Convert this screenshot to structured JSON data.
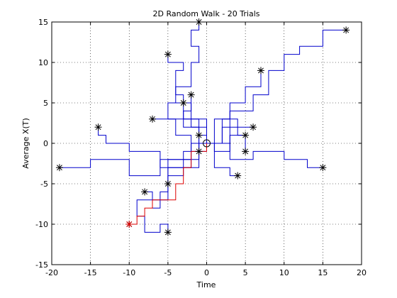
{
  "chart_data": {
    "type": "line",
    "title": "2D Random Walk - 20 Trials",
    "xlabel": "Time",
    "ylabel": "Average X(T)",
    "xlim": [
      -20,
      20
    ],
    "ylim": [
      -15,
      15
    ],
    "xticks": [
      -20,
      -15,
      -10,
      -5,
      0,
      5,
      10,
      15,
      20
    ],
    "yticks": [
      -15,
      -10,
      -5,
      0,
      5,
      10,
      15
    ],
    "grid": "dotted",
    "legend": "none",
    "start_point": [
      0,
      0
    ],
    "endpoints": [
      [
        -19,
        -3
      ],
      [
        -14,
        2
      ],
      [
        -10,
        -10
      ],
      [
        -8,
        -6
      ],
      [
        -7,
        3
      ],
      [
        -5,
        11
      ],
      [
        -5,
        -5
      ],
      [
        -5,
        -11
      ],
      [
        -3,
        5
      ],
      [
        -2,
        6
      ],
      [
        -1,
        15
      ],
      [
        -1,
        1
      ],
      [
        -1,
        -1
      ],
      [
        4,
        -4
      ],
      [
        5,
        1
      ],
      [
        5,
        -1
      ],
      [
        6,
        2
      ],
      [
        7,
        9
      ],
      [
        15,
        -3
      ],
      [
        18,
        14
      ]
    ],
    "blue_walks": [
      [
        [
          0,
          0
        ],
        [
          0,
          -1
        ],
        [
          -3,
          -1
        ],
        [
          -3,
          -3
        ],
        [
          -6,
          -3
        ],
        [
          -6,
          -1
        ],
        [
          -10,
          -1
        ],
        [
          -10,
          0
        ],
        [
          -13,
          0
        ],
        [
          -13,
          1
        ],
        [
          -14,
          1
        ],
        [
          -14,
          2
        ]
      ],
      [
        [
          0,
          0
        ],
        [
          -2,
          0
        ],
        [
          -2,
          -2
        ],
        [
          -6,
          -2
        ],
        [
          -6,
          -4
        ],
        [
          -10,
          -4
        ],
        [
          -10,
          -2
        ],
        [
          -15,
          -2
        ],
        [
          -15,
          -3
        ],
        [
          -19,
          -3
        ]
      ],
      [
        [
          0,
          0
        ],
        [
          -1,
          0
        ],
        [
          -1,
          3
        ],
        [
          -3,
          3
        ],
        [
          -3,
          6
        ],
        [
          -4,
          6
        ],
        [
          -4,
          9
        ],
        [
          -3,
          9
        ],
        [
          -3,
          10
        ],
        [
          -5,
          10
        ],
        [
          -5,
          11
        ]
      ],
      [
        [
          0,
          0
        ],
        [
          0,
          3
        ],
        [
          -2,
          3
        ],
        [
          -2,
          5
        ],
        [
          -4,
          5
        ],
        [
          -4,
          7
        ],
        [
          -2,
          7
        ],
        [
          -2,
          10
        ],
        [
          -1,
          10
        ],
        [
          -1,
          12
        ],
        [
          -2,
          12
        ],
        [
          -2,
          14
        ],
        [
          -1,
          14
        ],
        [
          -1,
          15
        ]
      ],
      [
        [
          0,
          0
        ],
        [
          -1,
          0
        ],
        [
          -1,
          2
        ],
        [
          -3,
          2
        ],
        [
          -3,
          4
        ],
        [
          -2,
          4
        ],
        [
          -2,
          6
        ]
      ],
      [
        [
          0,
          0
        ],
        [
          0,
          2
        ],
        [
          -2,
          2
        ],
        [
          -2,
          3
        ],
        [
          -5,
          3
        ],
        [
          -5,
          5
        ],
        [
          -3,
          5
        ]
      ],
      [
        [
          0,
          0
        ],
        [
          -2,
          0
        ],
        [
          -2,
          1
        ],
        [
          -4,
          1
        ],
        [
          -4,
          3
        ],
        [
          -7,
          3
        ]
      ],
      [
        [
          0,
          0
        ],
        [
          0,
          1
        ],
        [
          -1,
          1
        ]
      ],
      [
        [
          0,
          0
        ],
        [
          -1,
          0
        ],
        [
          -1,
          -1
        ]
      ],
      [
        [
          0,
          0
        ],
        [
          -1,
          0
        ],
        [
          -1,
          -3
        ],
        [
          -3,
          -3
        ],
        [
          -3,
          -4
        ],
        [
          -5,
          -4
        ],
        [
          -5,
          -5
        ]
      ],
      [
        [
          0,
          0
        ],
        [
          -1,
          0
        ],
        [
          -1,
          -2
        ],
        [
          -5,
          -2
        ],
        [
          -5,
          -6
        ],
        [
          -6,
          -6
        ],
        [
          -6,
          -8
        ],
        [
          -7,
          -8
        ],
        [
          -7,
          -6
        ],
        [
          -8,
          -6
        ]
      ],
      [
        [
          0,
          0
        ],
        [
          -2,
          0
        ],
        [
          -2,
          -3
        ],
        [
          -5,
          -3
        ],
        [
          -5,
          -7
        ],
        [
          -9,
          -7
        ],
        [
          -9,
          -9
        ],
        [
          -8,
          -9
        ],
        [
          -8,
          -11
        ],
        [
          -6,
          -11
        ],
        [
          -6,
          -10
        ],
        [
          -5,
          -10
        ],
        [
          -5,
          -11
        ]
      ],
      [
        [
          0,
          0
        ],
        [
          1,
          0
        ],
        [
          1,
          -3
        ],
        [
          3,
          -3
        ],
        [
          3,
          -4
        ],
        [
          4,
          -4
        ]
      ],
      [
        [
          0,
          0
        ],
        [
          2,
          0
        ],
        [
          2,
          2
        ],
        [
          4,
          2
        ],
        [
          4,
          1
        ],
        [
          5,
          1
        ]
      ],
      [
        [
          0,
          0
        ],
        [
          1,
          0
        ],
        [
          1,
          -1
        ],
        [
          3,
          -1
        ],
        [
          3,
          1
        ],
        [
          5,
          1
        ],
        [
          5,
          -1
        ]
      ],
      [
        [
          0,
          0
        ],
        [
          2,
          0
        ],
        [
          2,
          3
        ],
        [
          4,
          3
        ],
        [
          4,
          2
        ],
        [
          6,
          2
        ]
      ],
      [
        [
          0,
          0
        ],
        [
          1,
          0
        ],
        [
          1,
          3
        ],
        [
          3,
          3
        ],
        [
          3,
          5
        ],
        [
          5,
          5
        ],
        [
          5,
          7
        ],
        [
          7,
          7
        ],
        [
          7,
          9
        ]
      ],
      [
        [
          0,
          0
        ],
        [
          3,
          0
        ],
        [
          3,
          -2
        ],
        [
          6,
          -2
        ],
        [
          6,
          -1
        ],
        [
          10,
          -1
        ],
        [
          10,
          -2
        ],
        [
          13,
          -2
        ],
        [
          13,
          -3
        ],
        [
          15,
          -3
        ]
      ],
      [
        [
          0,
          0
        ],
        [
          3,
          0
        ],
        [
          3,
          4
        ],
        [
          6,
          4
        ],
        [
          6,
          6
        ],
        [
          8,
          6
        ],
        [
          8,
          9
        ],
        [
          10,
          9
        ],
        [
          10,
          11
        ],
        [
          12,
          11
        ],
        [
          12,
          12
        ],
        [
          15,
          12
        ],
        [
          15,
          14
        ],
        [
          18,
          14
        ]
      ]
    ],
    "red_walk": [
      [
        0,
        0
      ],
      [
        0,
        -1
      ],
      [
        -2,
        -1
      ],
      [
        -2,
        -3
      ],
      [
        -3,
        -3
      ],
      [
        -3,
        -5
      ],
      [
        -4,
        -5
      ],
      [
        -4,
        -7
      ],
      [
        -7,
        -7
      ],
      [
        -7,
        -8
      ],
      [
        -8,
        -8
      ],
      [
        -8,
        -9
      ],
      [
        -9,
        -9
      ],
      [
        -9,
        -10
      ],
      [
        -10,
        -10
      ]
    ]
  }
}
